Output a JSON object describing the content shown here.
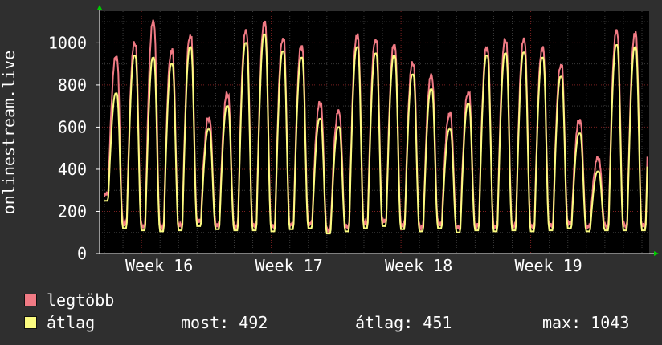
{
  "chart_data": {
    "type": "line",
    "ylabel": "onlinestream.live",
    "ylim": [
      0,
      1150
    ],
    "yticks": [
      0,
      200,
      400,
      600,
      800,
      1000
    ],
    "x_week_labels": [
      "Week 16",
      "Week 17",
      "Week 18",
      "Week 19"
    ],
    "grid": true,
    "series": [
      {
        "name": "legtöbb",
        "color": "#f07a84",
        "daily_peaks": [
          920,
          985,
          1085,
          950,
          1020,
          630,
          745,
          1040,
          1080,
          1005,
          970,
          700,
          660,
          1020,
          1000,
          975,
          890,
          830,
          650,
          750,
          965,
          1000,
          1000,
          960,
          880,
          620,
          440,
          1040,
          1030,
          1015
        ],
        "daily_troughs": [
          270,
          130,
          120,
          115,
          120,
          140,
          125,
          120,
          120,
          115,
          125,
          130,
          100,
          115,
          130,
          140,
          125,
          115,
          130,
          110,
          120,
          115,
          120,
          115,
          120,
          130,
          115,
          120,
          120,
          120
        ]
      },
      {
        "name": "átlag",
        "color": "#fbfb80",
        "daily_peaks": [
          760,
          940,
          930,
          900,
          980,
          590,
          700,
          1000,
          1040,
          960,
          930,
          640,
          600,
          980,
          950,
          940,
          850,
          780,
          590,
          710,
          940,
          950,
          955,
          930,
          840,
          570,
          390,
          990,
          980,
          970
        ],
        "daily_troughs": [
          250,
          120,
          110,
          105,
          110,
          130,
          115,
          110,
          110,
          105,
          115,
          120,
          95,
          105,
          120,
          130,
          115,
          105,
          120,
          100,
          110,
          105,
          110,
          105,
          110,
          120,
          105,
          110,
          110,
          110
        ]
      }
    ]
  },
  "legend": [
    {
      "label": "legtöbb",
      "color": "#f07a84"
    },
    {
      "label": "átlag",
      "color": "#fbfb80"
    }
  ],
  "stats": {
    "most_label": "most:",
    "most_value": "492",
    "atlag_label": "átlag:",
    "atlag_value": "451",
    "max_label": "max:",
    "max_value": "1043"
  }
}
